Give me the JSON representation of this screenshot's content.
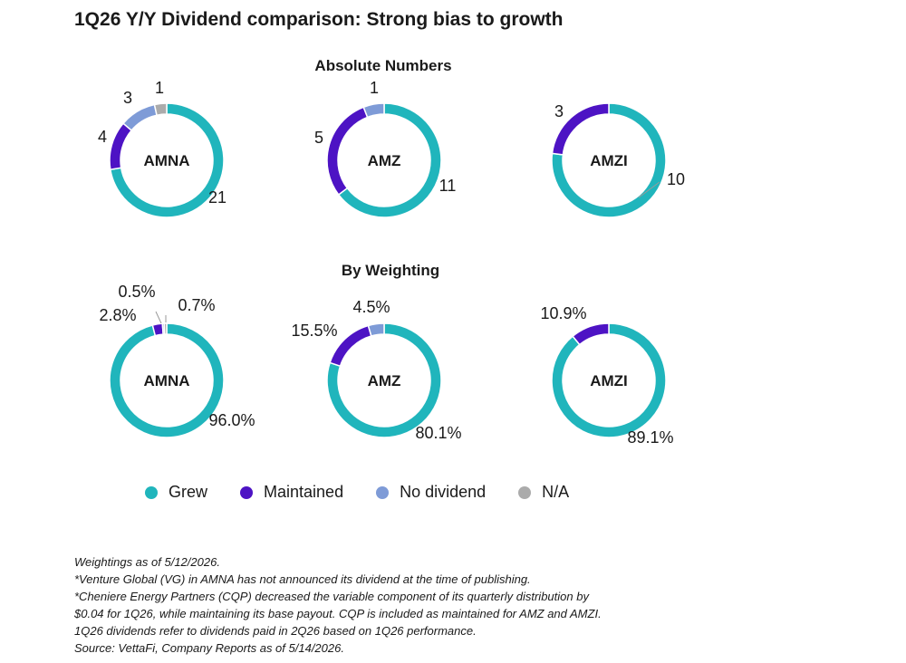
{
  "title": "1Q26 Y/Y Dividend comparison: Strong bias to growth",
  "colors": {
    "Grew": "#20b5bc",
    "Maintained": "#4d13c4",
    "No dividend": "#7e9bd7",
    "N/A": "#ababab"
  },
  "chart_data": [
    {
      "type": "pie",
      "section": "Absolute Numbers",
      "center_label": "AMNA",
      "slices": [
        {
          "category": "Grew",
          "value": 21,
          "label": "21"
        },
        {
          "category": "Maintained",
          "value": 4,
          "label": "4"
        },
        {
          "category": "No dividend",
          "value": 3,
          "label": "3"
        },
        {
          "category": "N/A",
          "value": 1,
          "label": "1"
        }
      ]
    },
    {
      "type": "pie",
      "section": "Absolute Numbers",
      "center_label": "AMZ",
      "slices": [
        {
          "category": "Grew",
          "value": 11,
          "label": "11"
        },
        {
          "category": "Maintained",
          "value": 5,
          "label": "5"
        },
        {
          "category": "No dividend",
          "value": 1,
          "label": "1"
        }
      ]
    },
    {
      "type": "pie",
      "section": "Absolute Numbers",
      "center_label": "AMZI",
      "slices": [
        {
          "category": "Grew",
          "value": 10,
          "label": "10"
        },
        {
          "category": "Maintained",
          "value": 3,
          "label": "3"
        }
      ]
    },
    {
      "type": "pie",
      "section": "By Weighting",
      "center_label": "AMNA",
      "slices": [
        {
          "category": "Grew",
          "value": 96.0,
          "label": "96.0%"
        },
        {
          "category": "Maintained",
          "value": 2.8,
          "label": "2.8%"
        },
        {
          "category": "No dividend",
          "value": 0.5,
          "label": "0.5%"
        },
        {
          "category": "N/A",
          "value": 0.7,
          "label": "0.7%"
        }
      ]
    },
    {
      "type": "pie",
      "section": "By Weighting",
      "center_label": "AMZ",
      "slices": [
        {
          "category": "Grew",
          "value": 80.1,
          "label": "80.1%"
        },
        {
          "category": "Maintained",
          "value": 15.5,
          "label": "15.5%"
        },
        {
          "category": "No dividend",
          "value": 4.5,
          "label": "4.5%"
        }
      ]
    },
    {
      "type": "pie",
      "section": "By Weighting",
      "center_label": "AMZI",
      "slices": [
        {
          "category": "Grew",
          "value": 89.1,
          "label": "89.1%"
        },
        {
          "category": "Maintained",
          "value": 10.9,
          "label": "10.9%"
        }
      ]
    }
  ],
  "sections": [
    "Absolute Numbers",
    "By Weighting"
  ],
  "legend": [
    {
      "label": "Grew",
      "color": "#20b5bc"
    },
    {
      "label": "Maintained",
      "color": "#4d13c4"
    },
    {
      "label": "No dividend",
      "color": "#7e9bd7"
    },
    {
      "label": "N/A",
      "color": "#ababab"
    }
  ],
  "notes": [
    "Weightings as of 5/12/2026.",
    "*Venture Global (VG) in AMNA has not announced its dividend at the time of publishing.",
    "*Cheniere Energy Partners (CQP) decreased the variable component of its quarterly distribution by",
    "$0.04 for 1Q26, while maintaining its base payout. CQP is included as maintained for AMZ and AMZI.",
    "1Q26 dividends refer to dividends paid in 2Q26 based on 1Q26 performance.",
    "Source: VettaFi, Company Reports as of 5/14/2026."
  ]
}
